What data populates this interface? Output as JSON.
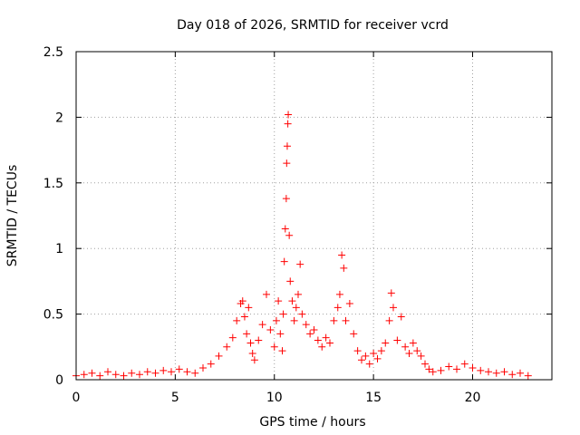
{
  "chart_data": {
    "type": "scatter",
    "title": "Day 018 of 2026, SRMTID for receiver vcrd",
    "xlabel": "GPS time / hours",
    "ylabel": "SRMTID / TECUs",
    "xlim": [
      0,
      24
    ],
    "ylim": [
      0,
      2.5
    ],
    "xticks": [
      0,
      5,
      10,
      15,
      20
    ],
    "xtick_labels": [
      "0",
      "5",
      "10",
      "15",
      "20"
    ],
    "yticks": [
      0,
      0.5,
      1,
      1.5,
      2,
      2.5
    ],
    "ytick_labels": [
      "0",
      "0.5",
      "1",
      "1.5",
      "2",
      "2.5"
    ],
    "grid": true,
    "marker": "+",
    "series": [
      {
        "name": "SRMTID",
        "color": "#ff0000",
        "x": [
          0.0,
          0.4,
          0.8,
          1.2,
          1.6,
          2.0,
          2.4,
          2.8,
          3.2,
          3.6,
          4.0,
          4.4,
          4.8,
          5.2,
          5.6,
          6.0,
          6.4,
          6.8,
          7.2,
          7.6,
          7.9,
          8.1,
          8.3,
          8.4,
          8.5,
          8.6,
          8.7,
          8.8,
          8.9,
          9.0,
          9.2,
          9.4,
          9.6,
          9.8,
          10.0,
          10.1,
          10.2,
          10.3,
          10.4,
          10.45,
          10.5,
          10.55,
          10.6,
          10.62,
          10.65,
          10.68,
          10.7,
          10.75,
          10.8,
          10.9,
          11.0,
          11.1,
          11.2,
          11.3,
          11.4,
          11.6,
          11.8,
          12.0,
          12.2,
          12.4,
          12.6,
          12.8,
          13.0,
          13.2,
          13.3,
          13.4,
          13.5,
          13.6,
          13.8,
          14.0,
          14.2,
          14.4,
          14.6,
          14.8,
          15.0,
          15.2,
          15.4,
          15.6,
          15.8,
          15.9,
          16.0,
          16.2,
          16.4,
          16.6,
          16.8,
          17.0,
          17.2,
          17.4,
          17.6,
          17.8,
          18.0,
          18.4,
          18.8,
          19.2,
          19.6,
          20.0,
          20.4,
          20.8,
          21.2,
          21.6,
          22.0,
          22.4,
          22.8
        ],
        "y": [
          0.03,
          0.04,
          0.05,
          0.03,
          0.06,
          0.04,
          0.03,
          0.05,
          0.04,
          0.06,
          0.05,
          0.07,
          0.06,
          0.08,
          0.06,
          0.05,
          0.09,
          0.12,
          0.18,
          0.25,
          0.32,
          0.45,
          0.58,
          0.6,
          0.48,
          0.35,
          0.55,
          0.28,
          0.2,
          0.15,
          0.3,
          0.42,
          0.65,
          0.38,
          0.25,
          0.45,
          0.6,
          0.35,
          0.22,
          0.5,
          0.9,
          1.15,
          1.38,
          1.65,
          1.78,
          1.95,
          2.02,
          1.1,
          0.75,
          0.6,
          0.45,
          0.55,
          0.65,
          0.88,
          0.5,
          0.42,
          0.35,
          0.38,
          0.3,
          0.25,
          0.32,
          0.28,
          0.45,
          0.55,
          0.65,
          0.95,
          0.85,
          0.45,
          0.58,
          0.35,
          0.22,
          0.15,
          0.18,
          0.12,
          0.2,
          0.16,
          0.22,
          0.28,
          0.45,
          0.66,
          0.55,
          0.3,
          0.48,
          0.25,
          0.2,
          0.28,
          0.22,
          0.18,
          0.12,
          0.08,
          0.06,
          0.07,
          0.1,
          0.08,
          0.12,
          0.09,
          0.07,
          0.06,
          0.05,
          0.06,
          0.04,
          0.05,
          0.03
        ]
      }
    ]
  }
}
